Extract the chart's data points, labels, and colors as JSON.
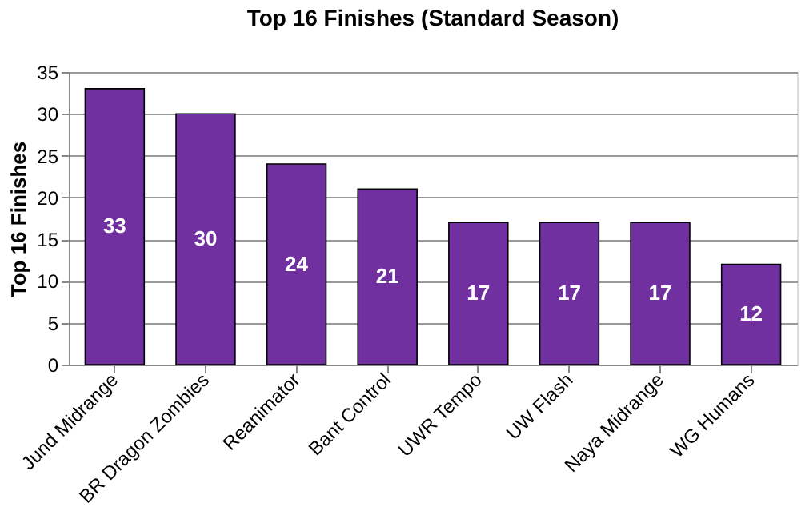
{
  "chart_data": {
    "type": "bar",
    "title": "Top 16 Finishes (Standard Season)",
    "ylabel": "Top 16 Finishes",
    "categories": [
      "Jund Midrange",
      "BR Dragon Zombies",
      "Reanimator",
      "Bant Control",
      "UWR Tempo",
      "UW Flash",
      "Naya Midrange",
      "WG Humans"
    ],
    "values": [
      33,
      30,
      24,
      21,
      17,
      17,
      17,
      12
    ],
    "color": "#7030a0",
    "ylim": [
      0,
      35
    ],
    "yticks": [
      0,
      5,
      10,
      15,
      20,
      25,
      30,
      35
    ],
    "grid": "y",
    "data_labels": true
  }
}
